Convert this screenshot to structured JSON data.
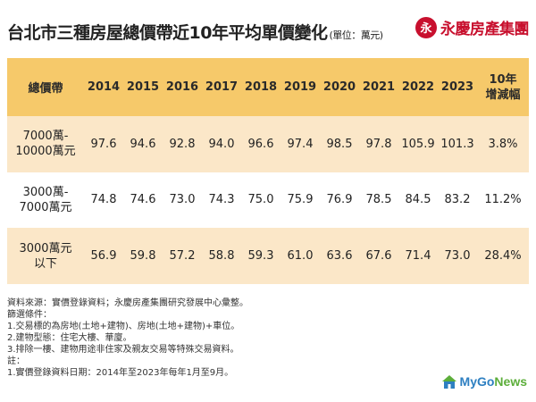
{
  "header": {
    "title": "台北市三種房屋總價帶近10年平均單價變化",
    "unit": "(單位：萬元)",
    "brand_logo_char": "永",
    "brand_name": "永慶房產集團"
  },
  "table": {
    "columns": [
      "總價帶",
      "2014",
      "2015",
      "2016",
      "2017",
      "2018",
      "2019",
      "2020",
      "2021",
      "2022",
      "2023"
    ],
    "last_column": [
      "10年",
      "增減幅"
    ],
    "rows": [
      {
        "label": [
          "7000萬-",
          "10000萬元"
        ],
        "values": [
          "97.6",
          "94.6",
          "92.8",
          "94.0",
          "96.6",
          "97.4",
          "98.5",
          "97.8",
          "105.9",
          "101.3"
        ],
        "change": "3.8%"
      },
      {
        "label": [
          "3000萬-",
          "7000萬元"
        ],
        "values": [
          "74.8",
          "74.6",
          "73.0",
          "74.3",
          "75.0",
          "75.9",
          "76.9",
          "78.5",
          "84.5",
          "83.2"
        ],
        "change": "11.2%"
      },
      {
        "label": [
          "3000萬元",
          "以下"
        ],
        "values": [
          "56.9",
          "59.8",
          "57.2",
          "58.8",
          "59.3",
          "61.0",
          "63.6",
          "67.6",
          "71.4",
          "73.0"
        ],
        "change": "28.4%"
      }
    ]
  },
  "notes": [
    "資料來源：實價登錄資料；永慶房產集團研究發展中心彙整。",
    "篩選條件：",
    "1.交易標的為房地(土地+建物)、房地(土地+建物)+車位。",
    "2.建物型態：住宅大樓、華廈。",
    "3.排除一樓、建物用途非住家及親友交易等特殊交易資料。",
    "註：",
    "1.實價登錄資料日期：2014年至2023年每年1月至9月。"
  ],
  "watermark": {
    "prefix": "MyGo",
    "suffix": "News"
  },
  "colors": {
    "header_bg": "#f6c96a",
    "band_bg": "#fbe7c8",
    "brand_red": "#c8102e",
    "mygo_blue": "#2d7fc1",
    "mygo_green": "#5cae3a"
  }
}
